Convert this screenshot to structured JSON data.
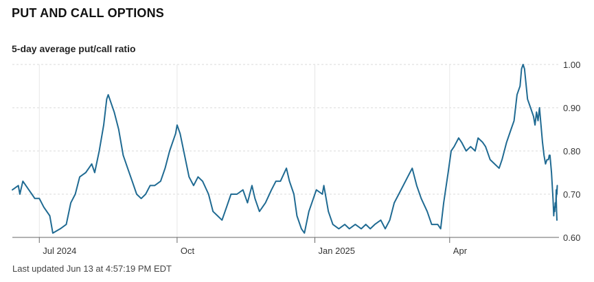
{
  "header": {
    "title": "PUT AND CALL OPTIONS"
  },
  "chart_title": "5-day average put/call ratio",
  "footer": {
    "updated": "Last updated Jun 13 at 4:57:19 PM EDT"
  },
  "colors": {
    "line": "#1f6a92",
    "grid": "#d9d9d9",
    "axis": "#666666"
  },
  "chart_data": {
    "type": "line",
    "title": "5-day average put/call ratio",
    "xlabel": "",
    "ylabel": "",
    "ylim": [
      0.6,
      1.0
    ],
    "x_range": [
      "2024-06-13",
      "2025-06-13"
    ],
    "grid": "horizontal dashed, vertical at month ticks",
    "y_ticks": [
      {
        "value": 1.0,
        "label": "1.00"
      },
      {
        "value": 0.9,
        "label": "0.90"
      },
      {
        "value": 0.8,
        "label": "0.80"
      },
      {
        "value": 0.7,
        "label": "0.70"
      },
      {
        "value": 0.6,
        "label": "0.60"
      }
    ],
    "x_ticks": [
      {
        "date": "2024-07-01",
        "label": "Jul 2024"
      },
      {
        "date": "2024-10-01",
        "label": "Oct"
      },
      {
        "date": "2025-01-01",
        "label": "Jan 2025"
      },
      {
        "date": "2025-04-01",
        "label": "Apr"
      }
    ],
    "series": [
      {
        "points": [
          [
            "2024-06-13",
            0.71
          ],
          [
            "2024-06-17",
            0.72
          ],
          [
            "2024-06-18",
            0.7
          ],
          [
            "2024-06-20",
            0.73
          ],
          [
            "2024-06-24",
            0.71
          ],
          [
            "2024-06-26",
            0.7
          ],
          [
            "2024-06-28",
            0.69
          ],
          [
            "2024-07-01",
            0.69
          ],
          [
            "2024-07-04",
            0.67
          ],
          [
            "2024-07-08",
            0.65
          ],
          [
            "2024-07-10",
            0.61
          ],
          [
            "2024-07-15",
            0.62
          ],
          [
            "2024-07-19",
            0.63
          ],
          [
            "2024-07-22",
            0.68
          ],
          [
            "2024-07-25",
            0.7
          ],
          [
            "2024-07-28",
            0.74
          ],
          [
            "2024-08-01",
            0.75
          ],
          [
            "2024-08-05",
            0.77
          ],
          [
            "2024-08-07",
            0.75
          ],
          [
            "2024-08-10",
            0.8
          ],
          [
            "2024-08-13",
            0.86
          ],
          [
            "2024-08-15",
            0.92
          ],
          [
            "2024-08-16",
            0.93
          ],
          [
            "2024-08-20",
            0.89
          ],
          [
            "2024-08-23",
            0.85
          ],
          [
            "2024-08-26",
            0.79
          ],
          [
            "2024-08-29",
            0.76
          ],
          [
            "2024-09-01",
            0.73
          ],
          [
            "2024-09-04",
            0.7
          ],
          [
            "2024-09-07",
            0.69
          ],
          [
            "2024-09-10",
            0.7
          ],
          [
            "2024-09-13",
            0.72
          ],
          [
            "2024-09-16",
            0.72
          ],
          [
            "2024-09-20",
            0.73
          ],
          [
            "2024-09-23",
            0.76
          ],
          [
            "2024-09-26",
            0.8
          ],
          [
            "2024-09-30",
            0.84
          ],
          [
            "2024-10-01",
            0.86
          ],
          [
            "2024-10-03",
            0.84
          ],
          [
            "2024-10-06",
            0.79
          ],
          [
            "2024-10-09",
            0.74
          ],
          [
            "2024-10-12",
            0.72
          ],
          [
            "2024-10-15",
            0.74
          ],
          [
            "2024-10-18",
            0.73
          ],
          [
            "2024-10-22",
            0.7
          ],
          [
            "2024-10-25",
            0.66
          ],
          [
            "2024-10-28",
            0.65
          ],
          [
            "2024-10-31",
            0.64
          ],
          [
            "2024-11-03",
            0.67
          ],
          [
            "2024-11-06",
            0.7
          ],
          [
            "2024-11-10",
            0.7
          ],
          [
            "2024-11-14",
            0.71
          ],
          [
            "2024-11-17",
            0.68
          ],
          [
            "2024-11-20",
            0.72
          ],
          [
            "2024-11-22",
            0.69
          ],
          [
            "2024-11-25",
            0.66
          ],
          [
            "2024-11-29",
            0.68
          ],
          [
            "2024-12-03",
            0.71
          ],
          [
            "2024-12-06",
            0.73
          ],
          [
            "2024-12-09",
            0.73
          ],
          [
            "2024-12-13",
            0.76
          ],
          [
            "2024-12-15",
            0.73
          ],
          [
            "2024-12-18",
            0.7
          ],
          [
            "2024-12-20",
            0.65
          ],
          [
            "2024-12-23",
            0.62
          ],
          [
            "2024-12-25",
            0.61
          ],
          [
            "2024-12-28",
            0.66
          ],
          [
            "2025-01-02",
            0.71
          ],
          [
            "2025-01-06",
            0.7
          ],
          [
            "2025-01-07",
            0.72
          ],
          [
            "2025-01-10",
            0.66
          ],
          [
            "2025-01-13",
            0.63
          ],
          [
            "2025-01-17",
            0.62
          ],
          [
            "2025-01-21",
            0.63
          ],
          [
            "2025-01-24",
            0.62
          ],
          [
            "2025-01-28",
            0.63
          ],
          [
            "2025-02-01",
            0.62
          ],
          [
            "2025-02-04",
            0.63
          ],
          [
            "2025-02-07",
            0.62
          ],
          [
            "2025-02-10",
            0.63
          ],
          [
            "2025-02-14",
            0.64
          ],
          [
            "2025-02-17",
            0.62
          ],
          [
            "2025-02-20",
            0.64
          ],
          [
            "2025-02-23",
            0.68
          ],
          [
            "2025-02-26",
            0.7
          ],
          [
            "2025-03-01",
            0.72
          ],
          [
            "2025-03-04",
            0.74
          ],
          [
            "2025-03-07",
            0.76
          ],
          [
            "2025-03-10",
            0.72
          ],
          [
            "2025-03-13",
            0.69
          ],
          [
            "2025-03-17",
            0.66
          ],
          [
            "2025-03-20",
            0.63
          ],
          [
            "2025-03-24",
            0.63
          ],
          [
            "2025-03-26",
            0.62
          ],
          [
            "2025-03-28",
            0.68
          ],
          [
            "2025-03-31",
            0.75
          ],
          [
            "2025-04-02",
            0.8
          ],
          [
            "2025-04-04",
            0.81
          ],
          [
            "2025-04-07",
            0.83
          ],
          [
            "2025-04-09",
            0.82
          ],
          [
            "2025-04-12",
            0.8
          ],
          [
            "2025-04-15",
            0.81
          ],
          [
            "2025-04-18",
            0.8
          ],
          [
            "2025-04-20",
            0.83
          ],
          [
            "2025-04-23",
            0.82
          ],
          [
            "2025-04-25",
            0.81
          ],
          [
            "2025-04-28",
            0.78
          ],
          [
            "2025-05-01",
            0.77
          ],
          [
            "2025-05-04",
            0.76
          ],
          [
            "2025-05-06",
            0.78
          ],
          [
            "2025-05-09",
            0.82
          ],
          [
            "2025-05-12",
            0.85
          ],
          [
            "2025-05-14",
            0.87
          ],
          [
            "2025-05-16",
            0.93
          ],
          [
            "2025-05-18",
            0.95
          ],
          [
            "2025-05-19",
            0.99
          ],
          [
            "2025-05-20",
            1.0
          ],
          [
            "2025-05-21",
            0.99
          ],
          [
            "2025-05-23",
            0.92
          ],
          [
            "2025-05-25",
            0.9
          ],
          [
            "2025-05-27",
            0.88
          ],
          [
            "2025-05-28",
            0.86
          ],
          [
            "2025-05-29",
            0.89
          ],
          [
            "2025-05-30",
            0.87
          ],
          [
            "2025-05-31",
            0.9
          ],
          [
            "2025-06-01",
            0.86
          ],
          [
            "2025-06-02",
            0.82
          ],
          [
            "2025-06-03",
            0.79
          ],
          [
            "2025-06-04",
            0.77
          ],
          [
            "2025-06-05",
            0.78
          ],
          [
            "2025-06-06",
            0.78
          ],
          [
            "2025-06-07",
            0.79
          ],
          [
            "2025-06-07",
            0.79
          ],
          [
            "2025-06-08",
            0.75
          ],
          [
            "2025-06-09",
            0.72
          ],
          [
            "2025-06-09",
            0.69
          ],
          [
            "2025-06-10",
            0.65
          ],
          [
            "2025-06-10",
            0.67
          ],
          [
            "2025-06-10",
            0.66
          ],
          [
            "2025-06-11",
            0.68
          ],
          [
            "2025-06-11",
            0.67
          ],
          [
            "2025-06-11",
            0.71
          ],
          [
            "2025-06-12",
            0.7
          ],
          [
            "2025-06-12",
            0.71
          ],
          [
            "2025-06-12",
            0.7
          ],
          [
            "2025-06-12",
            0.72
          ],
          [
            "2025-06-13",
            0.69
          ],
          [
            "2025-06-13",
            0.66
          ],
          [
            "2025-06-13",
            0.64
          ]
        ]
      }
    ]
  }
}
